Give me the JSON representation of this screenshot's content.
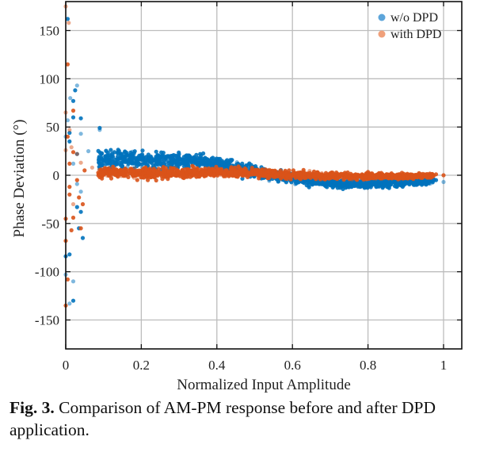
{
  "chart_data": {
    "type": "scatter",
    "xlabel": "Normalized Input Amplitude",
    "ylabel": "Phase Deviation (°)",
    "xlim": [
      0,
      1.05
    ],
    "ylim": [
      -180,
      180
    ],
    "xticks": [
      0,
      0.2,
      0.4,
      0.6,
      0.8,
      1
    ],
    "xtick_labels": [
      "0",
      "0.2",
      "0.4",
      "0.6",
      "0.8",
      "1"
    ],
    "yticks": [
      150,
      100,
      50,
      0,
      -50,
      -100,
      -150
    ],
    "ytick_labels": [
      "150",
      "100",
      "50",
      "0",
      "-50",
      "-100",
      "-150"
    ],
    "grid": true,
    "legend": {
      "position": "top-right",
      "entries": [
        "w/o DPD",
        "with DPD"
      ]
    },
    "series": [
      {
        "name": "w/o DPD",
        "color": "#0072BD",
        "legend_color": "#5DA5DA",
        "band": [
          {
            "x": 0.08,
            "center": 17,
            "spread": 9
          },
          {
            "x": 0.2,
            "center": 16,
            "spread": 8
          },
          {
            "x": 0.35,
            "center": 14,
            "spread": 7
          },
          {
            "x": 0.45,
            "center": 8,
            "spread": 6
          },
          {
            "x": 0.55,
            "center": 0,
            "spread": 5
          },
          {
            "x": 0.65,
            "center": -6,
            "spread": 4
          },
          {
            "x": 0.75,
            "center": -9,
            "spread": 4
          },
          {
            "x": 0.85,
            "center": -8,
            "spread": 4
          },
          {
            "x": 0.97,
            "center": -6,
            "spread": 3
          }
        ],
        "points": [
          [
            0.005,
            162
          ],
          [
            0.012,
            80
          ],
          [
            0.02,
            77
          ],
          [
            0.025,
            88
          ],
          [
            0.03,
            93
          ],
          [
            0.02,
            60
          ],
          [
            0.04,
            59
          ],
          [
            0.04,
            43
          ],
          [
            0.01,
            44
          ],
          [
            0.005,
            57
          ],
          [
            0.09,
            49
          ],
          [
            0.09,
            47
          ],
          [
            0.06,
            25
          ],
          [
            0.03,
            22
          ],
          [
            0.03,
            -33
          ],
          [
            0.04,
            -38
          ],
          [
            0.035,
            -55
          ],
          [
            0.045,
            -65
          ],
          [
            0.0,
            -84
          ],
          [
            0.01,
            -82
          ],
          [
            0.0,
            -103
          ],
          [
            0.02,
            -110
          ],
          [
            0.01,
            -133
          ],
          [
            0.02,
            -130
          ],
          [
            0.04,
            -17
          ],
          [
            0.01,
            35
          ],
          [
            0.02,
            12
          ],
          [
            0.03,
            -9
          ],
          [
            0.0,
            40
          ],
          [
            1.0,
            -7
          ],
          [
            0.98,
            -5
          ]
        ]
      },
      {
        "name": "with DPD",
        "color": "#D95319",
        "legend_color": "#F0A07A",
        "band": [
          {
            "x": 0.08,
            "center": 3,
            "spread": 5
          },
          {
            "x": 0.2,
            "center": 2,
            "spread": 5
          },
          {
            "x": 0.35,
            "center": 3,
            "spread": 5
          },
          {
            "x": 0.5,
            "center": 3,
            "spread": 4
          },
          {
            "x": 0.6,
            "center": 0,
            "spread": 4
          },
          {
            "x": 0.75,
            "center": -1,
            "spread": 3
          },
          {
            "x": 0.9,
            "center": -1,
            "spread": 2.5
          },
          {
            "x": 0.98,
            "center": 0,
            "spread": 2
          }
        ],
        "points": [
          [
            0.0,
            175
          ],
          [
            0.008,
            158
          ],
          [
            0.005,
            115
          ],
          [
            0.02,
            67
          ],
          [
            0.0,
            65
          ],
          [
            0.01,
            47
          ],
          [
            0.015,
            29
          ],
          [
            0.005,
            40
          ],
          [
            0.02,
            24
          ],
          [
            0.03,
            22
          ],
          [
            0.0,
            26
          ],
          [
            0.04,
            13
          ],
          [
            0.01,
            -20
          ],
          [
            0.02,
            -30
          ],
          [
            0.035,
            -23
          ],
          [
            0.045,
            -30
          ],
          [
            0.02,
            -44
          ],
          [
            0.0,
            -45
          ],
          [
            0.015,
            -57
          ],
          [
            0.04,
            -55
          ],
          [
            0.0,
            -68
          ],
          [
            0.005,
            -108
          ],
          [
            0.0,
            -135
          ],
          [
            0.01,
            -12
          ],
          [
            0.03,
            -5
          ],
          [
            0.05,
            5
          ],
          [
            0.07,
            8
          ],
          [
            0.01,
            12
          ],
          [
            1.0,
            0
          ],
          [
            0.98,
            1
          ]
        ]
      }
    ]
  },
  "caption": {
    "label": "Fig. 3.",
    "text": " Comparison of AM-PM response before and after DPD application."
  }
}
